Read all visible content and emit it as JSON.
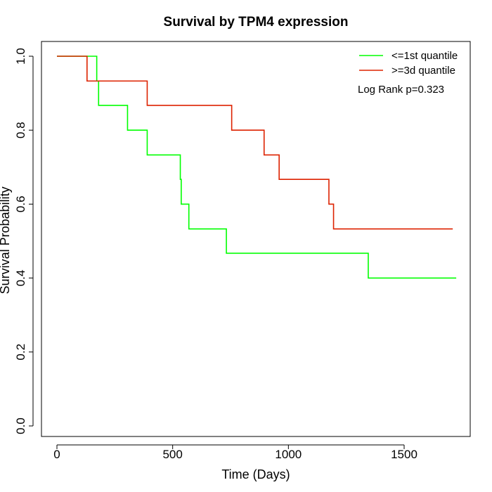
{
  "chart_data": {
    "type": "line",
    "title": "Survival by TPM4 expression",
    "xlabel": "Time (Days)",
    "ylabel": "Survival Probability",
    "xlim": [
      0,
      1750
    ],
    "ylim": [
      0,
      1
    ],
    "xticks": [
      0,
      500,
      1000,
      1500
    ],
    "yticks": [
      0.0,
      0.2,
      0.4,
      0.6,
      0.8,
      1.0
    ],
    "xtick_labels": [
      "0",
      "500",
      "1000",
      "1500"
    ],
    "ytick_labels": [
      "0.0",
      "0.2",
      "0.4",
      "0.6",
      "0.8",
      "1.0"
    ],
    "legend_position": "top-right",
    "annotation": "Log Rank p=0.323",
    "series": [
      {
        "name": "<=1st quantile",
        "color": "#00ff00",
        "step": true,
        "x": [
          0,
          172,
          180,
          305,
          390,
          533,
          537,
          570,
          732,
          1345,
          1725
        ],
        "y": [
          1.0,
          0.933,
          0.867,
          0.8,
          0.733,
          0.667,
          0.6,
          0.533,
          0.467,
          0.4,
          0.4
        ]
      },
      {
        "name": ">=3d quantile",
        "color": "#dd2200",
        "step": true,
        "x": [
          0,
          130,
          390,
          755,
          895,
          960,
          1175,
          1195,
          1710
        ],
        "y": [
          1.0,
          0.933,
          0.867,
          0.8,
          0.733,
          0.667,
          0.6,
          0.533,
          0.533
        ]
      }
    ]
  }
}
